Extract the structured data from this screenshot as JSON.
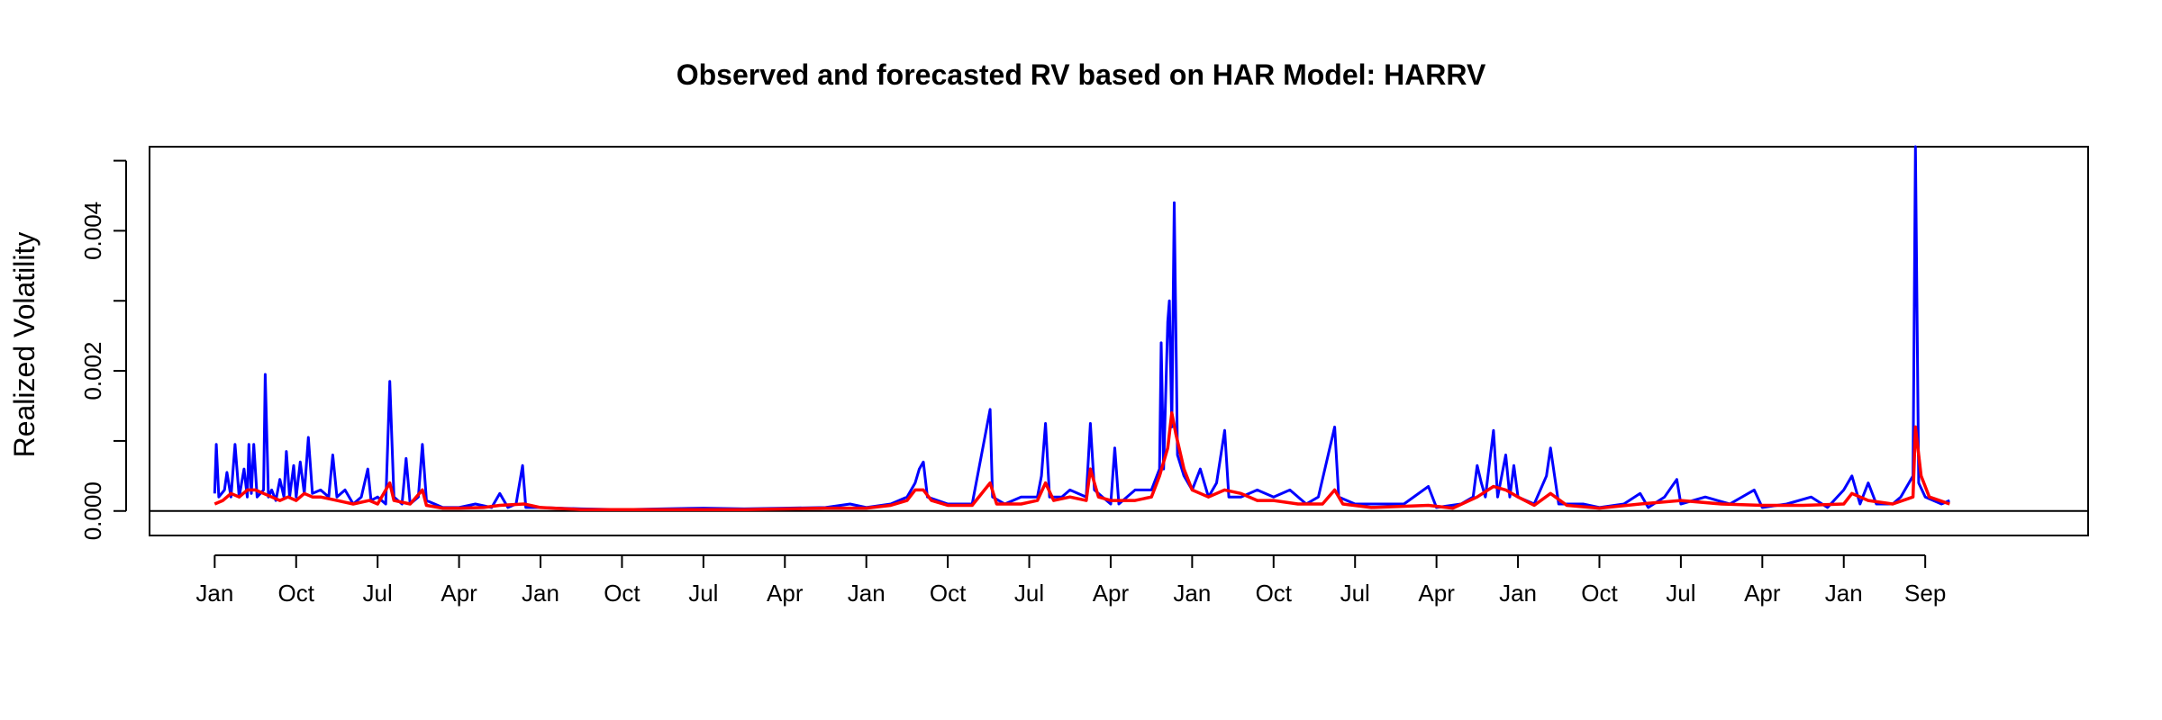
{
  "chart_data": {
    "type": "line",
    "title": "Observed and forecasted RV based on HAR Model: HARRV",
    "xlabel": "",
    "ylabel": "Realized Volatility",
    "ylim": [
      -0.00035,
      0.0052
    ],
    "xlim": [
      -0.8,
      23.0
    ],
    "grid": false,
    "legend": "none",
    "yticks": [
      {
        "value": 0.0,
        "label": "0.000"
      },
      {
        "value": 0.001,
        "label": ""
      },
      {
        "value": 0.002,
        "label": "0.002"
      },
      {
        "value": 0.003,
        "label": ""
      },
      {
        "value": 0.004,
        "label": "0.004"
      },
      {
        "value": 0.005,
        "label": ""
      }
    ],
    "xticks": [
      {
        "value": 0,
        "label": "Jan"
      },
      {
        "value": 1,
        "label": "Oct"
      },
      {
        "value": 2,
        "label": "Jul"
      },
      {
        "value": 3,
        "label": "Apr"
      },
      {
        "value": 4,
        "label": "Jan"
      },
      {
        "value": 5,
        "label": "Oct"
      },
      {
        "value": 6,
        "label": "Jul"
      },
      {
        "value": 7,
        "label": "Apr"
      },
      {
        "value": 8,
        "label": "Jan"
      },
      {
        "value": 9,
        "label": "Oct"
      },
      {
        "value": 10,
        "label": "Jul"
      },
      {
        "value": 11,
        "label": "Apr"
      },
      {
        "value": 12,
        "label": "Jan"
      },
      {
        "value": 13,
        "label": "Oct"
      },
      {
        "value": 14,
        "label": "Jul"
      },
      {
        "value": 15,
        "label": "Apr"
      },
      {
        "value": 16,
        "label": "Jan"
      },
      {
        "value": 17,
        "label": "Oct"
      },
      {
        "value": 18,
        "label": "Jul"
      },
      {
        "value": 19,
        "label": "Apr"
      },
      {
        "value": 20,
        "label": "Jan"
      },
      {
        "value": 21,
        "label": "Sep"
      }
    ],
    "series": [
      {
        "color": "#0000ff",
        "points": [
          [
            0.0,
            0.00025
          ],
          [
            0.02,
            0.00095
          ],
          [
            0.05,
            0.0002
          ],
          [
            0.12,
            0.0003
          ],
          [
            0.15,
            0.00055
          ],
          [
            0.2,
            0.0002
          ],
          [
            0.25,
            0.00095
          ],
          [
            0.3,
            0.0002
          ],
          [
            0.36,
            0.0006
          ],
          [
            0.4,
            0.0002
          ],
          [
            0.42,
            0.00095
          ],
          [
            0.45,
            0.00025
          ],
          [
            0.48,
            0.00095
          ],
          [
            0.52,
            0.0002
          ],
          [
            0.6,
            0.0003
          ],
          [
            0.62,
            0.00195
          ],
          [
            0.66,
            0.0002
          ],
          [
            0.7,
            0.0003
          ],
          [
            0.75,
            0.00015
          ],
          [
            0.8,
            0.00045
          ],
          [
            0.85,
            0.0002
          ],
          [
            0.88,
            0.00085
          ],
          [
            0.92,
            0.0002
          ],
          [
            0.97,
            0.00065
          ],
          [
            1.0,
            0.0002
          ],
          [
            1.05,
            0.0007
          ],
          [
            1.1,
            0.00025
          ],
          [
            1.15,
            0.00105
          ],
          [
            1.2,
            0.00025
          ],
          [
            1.3,
            0.0003
          ],
          [
            1.4,
            0.0002
          ],
          [
            1.45,
            0.0008
          ],
          [
            1.5,
            0.0002
          ],
          [
            1.6,
            0.0003
          ],
          [
            1.7,
            0.0001
          ],
          [
            1.8,
            0.0002
          ],
          [
            1.88,
            0.0006
          ],
          [
            1.92,
            0.00015
          ],
          [
            2.0,
            0.0002
          ],
          [
            2.1,
            0.0001
          ],
          [
            2.15,
            0.00185
          ],
          [
            2.2,
            0.0002
          ],
          [
            2.3,
            0.0001
          ],
          [
            2.35,
            0.00075
          ],
          [
            2.4,
            0.0001
          ],
          [
            2.5,
            0.0002
          ],
          [
            2.55,
            0.00095
          ],
          [
            2.6,
            0.00015
          ],
          [
            2.7,
            0.0001
          ],
          [
            2.8,
            5e-05
          ],
          [
            3.0,
            5e-05
          ],
          [
            3.2,
            0.0001
          ],
          [
            3.4,
            5e-05
          ],
          [
            3.5,
            0.00025
          ],
          [
            3.6,
            5e-05
          ],
          [
            3.7,
            0.0001
          ],
          [
            3.78,
            0.00065
          ],
          [
            3.82,
            5e-05
          ],
          [
            4.0,
            5e-05
          ],
          [
            4.5,
            3e-05
          ],
          [
            5.0,
            2e-05
          ],
          [
            5.5,
            3e-05
          ],
          [
            6.0,
            4e-05
          ],
          [
            6.5,
            3e-05
          ],
          [
            7.0,
            4e-05
          ],
          [
            7.5,
            5e-05
          ],
          [
            7.8,
            0.0001
          ],
          [
            8.0,
            5e-05
          ],
          [
            8.3,
            0.0001
          ],
          [
            8.5,
            0.0002
          ],
          [
            8.6,
            0.0004
          ],
          [
            8.65,
            0.0006
          ],
          [
            8.7,
            0.0007
          ],
          [
            8.75,
            0.0002
          ],
          [
            9.0,
            0.0001
          ],
          [
            9.3,
            0.0001
          ],
          [
            9.52,
            0.00145
          ],
          [
            9.55,
            0.0002
          ],
          [
            9.7,
            0.0001
          ],
          [
            9.9,
            0.0002
          ],
          [
            10.1,
            0.0002
          ],
          [
            10.15,
            0.0005
          ],
          [
            10.2,
            0.00125
          ],
          [
            10.25,
            0.0002
          ],
          [
            10.4,
            0.0002
          ],
          [
            10.5,
            0.0003
          ],
          [
            10.7,
            0.0002
          ],
          [
            10.75,
            0.00125
          ],
          [
            10.8,
            0.0003
          ],
          [
            10.9,
            0.0002
          ],
          [
            11.0,
            0.0001
          ],
          [
            11.05,
            0.0009
          ],
          [
            11.1,
            0.0001
          ],
          [
            11.3,
            0.0003
          ],
          [
            11.5,
            0.0003
          ],
          [
            11.6,
            0.0006
          ],
          [
            11.62,
            0.0024
          ],
          [
            11.65,
            0.0006
          ],
          [
            11.7,
            0.0027
          ],
          [
            11.72,
            0.003
          ],
          [
            11.75,
            0.0012
          ],
          [
            11.78,
            0.0044
          ],
          [
            11.82,
            0.0008
          ],
          [
            11.9,
            0.0005
          ],
          [
            12.0,
            0.0003
          ],
          [
            12.1,
            0.0006
          ],
          [
            12.2,
            0.0002
          ],
          [
            12.3,
            0.0004
          ],
          [
            12.4,
            0.00115
          ],
          [
            12.45,
            0.0002
          ],
          [
            12.6,
            0.0002
          ],
          [
            12.8,
            0.0003
          ],
          [
            13.0,
            0.0002
          ],
          [
            13.2,
            0.0003
          ],
          [
            13.4,
            0.0001
          ],
          [
            13.55,
            0.0002
          ],
          [
            13.75,
            0.0012
          ],
          [
            13.8,
            0.0002
          ],
          [
            14.0,
            0.0001
          ],
          [
            14.3,
            0.0001
          ],
          [
            14.6,
            0.0001
          ],
          [
            14.9,
            0.00035
          ],
          [
            15.0,
            5e-05
          ],
          [
            15.3,
            0.0001
          ],
          [
            15.45,
            0.0002
          ],
          [
            15.5,
            0.00065
          ],
          [
            15.55,
            0.0004
          ],
          [
            15.6,
            0.0002
          ],
          [
            15.7,
            0.00115
          ],
          [
            15.75,
            0.0002
          ],
          [
            15.85,
            0.0008
          ],
          [
            15.9,
            0.0002
          ],
          [
            15.95,
            0.00065
          ],
          [
            16.0,
            0.0002
          ],
          [
            16.2,
            0.0001
          ],
          [
            16.35,
            0.0005
          ],
          [
            16.4,
            0.0009
          ],
          [
            16.45,
            0.0005
          ],
          [
            16.5,
            0.0001
          ],
          [
            16.8,
            0.0001
          ],
          [
            17.0,
            5e-05
          ],
          [
            17.3,
            0.0001
          ],
          [
            17.5,
            0.00025
          ],
          [
            17.6,
            5e-05
          ],
          [
            17.8,
            0.0002
          ],
          [
            17.95,
            0.00045
          ],
          [
            18.0,
            0.0001
          ],
          [
            18.3,
            0.0002
          ],
          [
            18.6,
            0.0001
          ],
          [
            18.9,
            0.0003
          ],
          [
            19.0,
            5e-05
          ],
          [
            19.3,
            0.0001
          ],
          [
            19.6,
            0.0002
          ],
          [
            19.8,
            5e-05
          ],
          [
            20.0,
            0.0003
          ],
          [
            20.1,
            0.0005
          ],
          [
            20.2,
            0.0001
          ],
          [
            20.3,
            0.0004
          ],
          [
            20.4,
            0.0001
          ],
          [
            20.6,
            0.0001
          ],
          [
            20.7,
            0.0002
          ],
          [
            20.85,
            0.0005
          ],
          [
            20.88,
            0.0052
          ],
          [
            20.92,
            0.0004
          ],
          [
            21.0,
            0.0002
          ],
          [
            21.2,
            0.0001
          ],
          [
            21.3,
            0.00015
          ]
        ]
      },
      {
        "color": "#ff0000",
        "points": [
          [
            0.0,
            0.0001
          ],
          [
            0.1,
            0.00015
          ],
          [
            0.2,
            0.00025
          ],
          [
            0.3,
            0.0002
          ],
          [
            0.4,
            0.0003
          ],
          [
            0.5,
            0.0003
          ],
          [
            0.6,
            0.00025
          ],
          [
            0.7,
            0.0002
          ],
          [
            0.8,
            0.00015
          ],
          [
            0.9,
            0.0002
          ],
          [
            1.0,
            0.00015
          ],
          [
            1.1,
            0.00025
          ],
          [
            1.2,
            0.0002
          ],
          [
            1.3,
            0.0002
          ],
          [
            1.5,
            0.00015
          ],
          [
            1.7,
            0.0001
          ],
          [
            1.9,
            0.00015
          ],
          [
            2.0,
            0.0001
          ],
          [
            2.15,
            0.0004
          ],
          [
            2.2,
            0.00015
          ],
          [
            2.4,
            0.0001
          ],
          [
            2.55,
            0.0003
          ],
          [
            2.6,
            8e-05
          ],
          [
            2.8,
            4e-05
          ],
          [
            3.0,
            4e-05
          ],
          [
            3.3,
            5e-05
          ],
          [
            3.5,
            8e-05
          ],
          [
            3.8,
            0.0001
          ],
          [
            4.0,
            5e-05
          ],
          [
            4.5,
            2e-05
          ],
          [
            5.5,
            2e-05
          ],
          [
            6.5,
            2e-05
          ],
          [
            7.5,
            4e-05
          ],
          [
            8.0,
            4e-05
          ],
          [
            8.3,
            8e-05
          ],
          [
            8.5,
            0.00015
          ],
          [
            8.6,
            0.0003
          ],
          [
            8.7,
            0.0003
          ],
          [
            8.8,
            0.00015
          ],
          [
            9.0,
            8e-05
          ],
          [
            9.3,
            8e-05
          ],
          [
            9.52,
            0.0004
          ],
          [
            9.6,
            0.0001
          ],
          [
            9.9,
            0.0001
          ],
          [
            10.1,
            0.00015
          ],
          [
            10.2,
            0.0004
          ],
          [
            10.3,
            0.00015
          ],
          [
            10.5,
            0.0002
          ],
          [
            10.7,
            0.00015
          ],
          [
            10.75,
            0.0006
          ],
          [
            10.85,
            0.0002
          ],
          [
            11.0,
            0.00015
          ],
          [
            11.3,
            0.00015
          ],
          [
            11.5,
            0.0002
          ],
          [
            11.6,
            0.0005
          ],
          [
            11.7,
            0.0009
          ],
          [
            11.75,
            0.0014
          ],
          [
            11.8,
            0.0011
          ],
          [
            11.9,
            0.0006
          ],
          [
            12.0,
            0.0003
          ],
          [
            12.2,
            0.0002
          ],
          [
            12.4,
            0.0003
          ],
          [
            12.6,
            0.00025
          ],
          [
            12.8,
            0.00015
          ],
          [
            13.0,
            0.00015
          ],
          [
            13.3,
            0.0001
          ],
          [
            13.6,
            0.0001
          ],
          [
            13.75,
            0.0003
          ],
          [
            13.85,
            0.0001
          ],
          [
            14.2,
            5e-05
          ],
          [
            14.9,
            8e-05
          ],
          [
            15.2,
            4e-05
          ],
          [
            15.5,
            0.0002
          ],
          [
            15.7,
            0.00035
          ],
          [
            15.85,
            0.0003
          ],
          [
            16.0,
            0.0002
          ],
          [
            16.2,
            8e-05
          ],
          [
            16.4,
            0.00025
          ],
          [
            16.6,
            8e-05
          ],
          [
            17.0,
            4e-05
          ],
          [
            17.5,
            0.0001
          ],
          [
            18.0,
            0.00015
          ],
          [
            18.5,
            0.0001
          ],
          [
            19.0,
            8e-05
          ],
          [
            19.5,
            8e-05
          ],
          [
            20.0,
            0.0001
          ],
          [
            20.1,
            0.00025
          ],
          [
            20.3,
            0.00015
          ],
          [
            20.6,
            0.0001
          ],
          [
            20.85,
            0.0002
          ],
          [
            20.88,
            0.0012
          ],
          [
            20.95,
            0.0005
          ],
          [
            21.05,
            0.0002
          ],
          [
            21.3,
            0.0001
          ]
        ]
      }
    ]
  }
}
